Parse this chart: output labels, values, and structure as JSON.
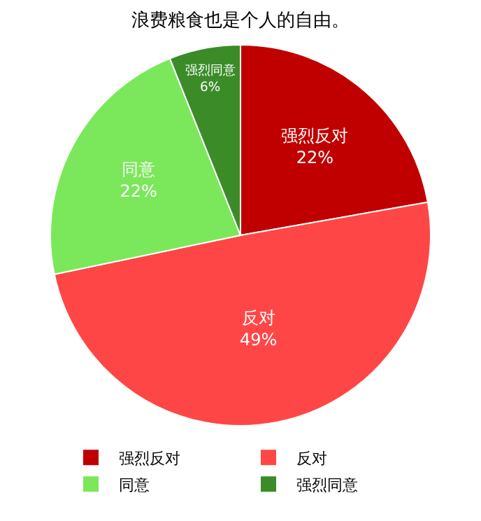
{
  "chart_data": {
    "type": "pie",
    "title": "浪费粮食也是个人的自由。",
    "categories": [
      "强烈反对",
      "反对",
      "同意",
      "强烈同意"
    ],
    "values": [
      22,
      49,
      22,
      6
    ],
    "value_labels": [
      "22%",
      "49%",
      "22%",
      "6%"
    ],
    "colors": [
      "#c00000",
      "#ff4646",
      "#7ae85a",
      "#3b8c29"
    ],
    "legend": "bottom"
  }
}
